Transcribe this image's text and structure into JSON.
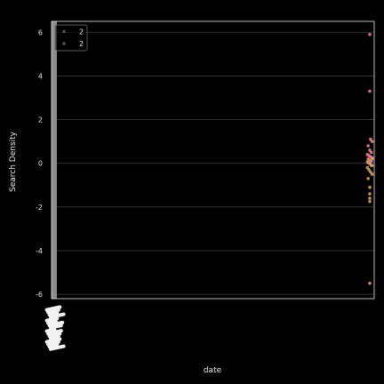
{
  "chart_data": {
    "type": "scatter",
    "xlabel": "date",
    "ylabel": "Search Density",
    "ylim": [
      -6.2,
      6.5
    ],
    "yticks": [
      "-6",
      "-4",
      "-2",
      "0",
      "2",
      "4",
      "6"
    ],
    "grid": true,
    "legend_placement": "top-left",
    "series": [
      {
        "name": "2",
        "color": "#e77c8e",
        "y": [
          5.9,
          3.3,
          1.1,
          1.0,
          0.8,
          0.6,
          0.5,
          0.4,
          0.35,
          0.3,
          0.25,
          0.2,
          0.15,
          0.1,
          0.05,
          0.0,
          -0.05,
          -0.1
        ]
      },
      {
        "name": "2",
        "color": "#c9a25a",
        "y": [
          0.2,
          0.1,
          0.0,
          -0.1,
          -0.2,
          -0.3,
          -0.4,
          -0.5,
          -0.7,
          -1.1,
          -1.4,
          -1.6,
          -1.75,
          -5.5
        ]
      }
    ],
    "background": "#000000",
    "band_color": "#8c8c8c",
    "grid_color": "#3a3a3a",
    "text_color": "#e6e6e6"
  }
}
